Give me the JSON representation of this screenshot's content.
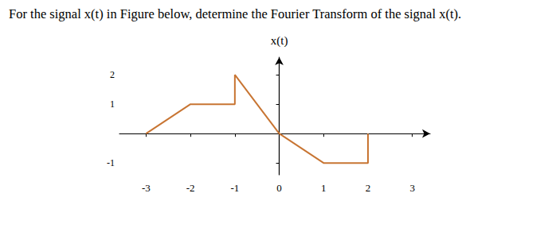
{
  "chart_data": {
    "type": "line",
    "title": "For the signal x(t) in Figure below, determine the Fourier Transform of the signal x(t).",
    "y_label": "x(t)",
    "x": [
      -3,
      -2,
      -1,
      -1,
      0,
      1,
      2,
      2
    ],
    "values": [
      0,
      1,
      1,
      2,
      0,
      -1,
      -1,
      0
    ],
    "color": "#c87533",
    "xlim": [
      -3.6,
      3.4
    ],
    "ylim": [
      -1.4,
      2.6
    ],
    "xticks": [
      -3,
      -2,
      -1,
      0,
      1,
      2,
      3
    ],
    "yticks": [
      -1,
      1,
      2
    ],
    "grid": false
  }
}
